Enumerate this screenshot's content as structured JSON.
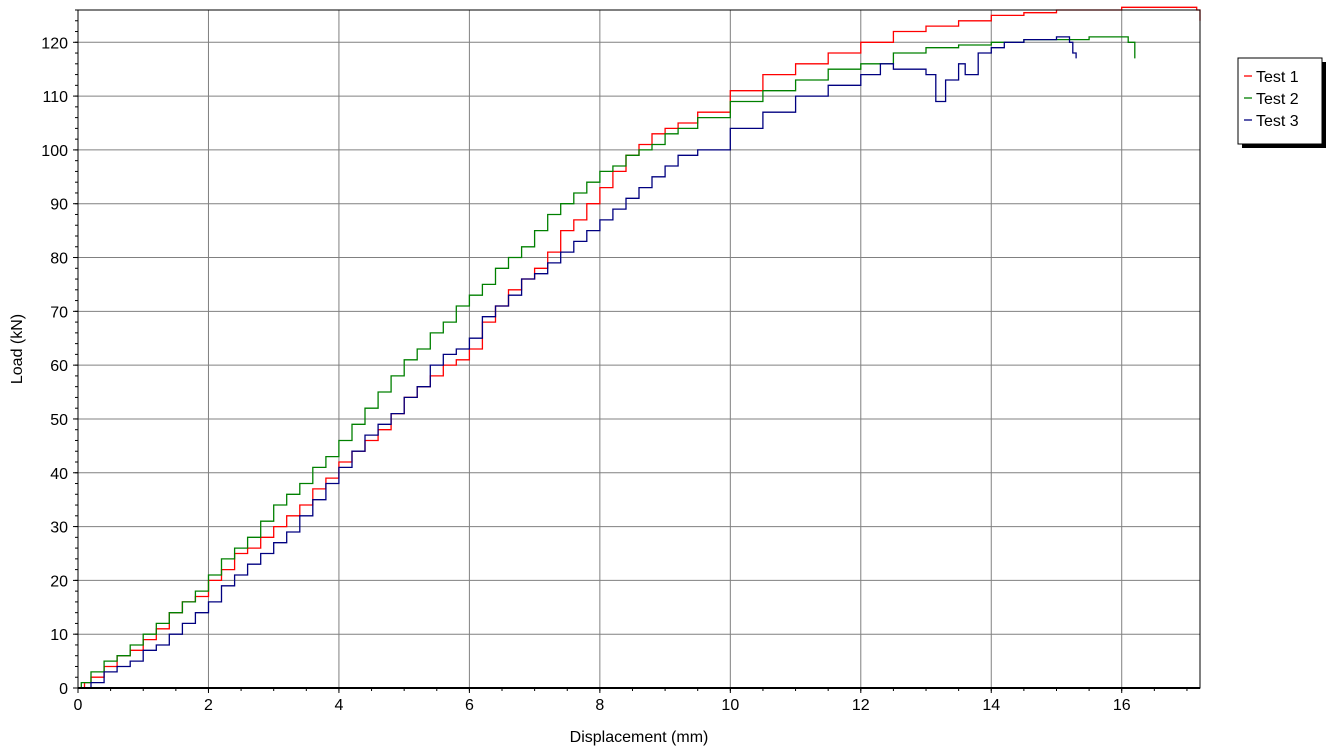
{
  "chart_data": {
    "type": "line",
    "title": "",
    "xlabel": "Displacement (mm)",
    "ylabel": "Load (kN)",
    "xlim": [
      0,
      17.2
    ],
    "ylim": [
      0,
      126
    ],
    "xticks": [
      0,
      2,
      4,
      6,
      8,
      10,
      12,
      14,
      16
    ],
    "yticks": [
      0,
      10,
      20,
      30,
      40,
      50,
      60,
      70,
      80,
      90,
      100,
      110,
      120
    ],
    "grid": true,
    "legend_position": "right",
    "series": [
      {
        "name": "Test 1",
        "color": "#ff0000",
        "points": [
          [
            0,
            0
          ],
          [
            0.1,
            1
          ],
          [
            0.2,
            2
          ],
          [
            0.4,
            4
          ],
          [
            0.6,
            6
          ],
          [
            0.8,
            7
          ],
          [
            1,
            9
          ],
          [
            1.2,
            11
          ],
          [
            1.4,
            14
          ],
          [
            1.6,
            16
          ],
          [
            1.8,
            17
          ],
          [
            2,
            20
          ],
          [
            2.2,
            22
          ],
          [
            2.4,
            25
          ],
          [
            2.6,
            26
          ],
          [
            2.8,
            28
          ],
          [
            3,
            30
          ],
          [
            3.2,
            32
          ],
          [
            3.4,
            34
          ],
          [
            3.6,
            37
          ],
          [
            3.8,
            39
          ],
          [
            4,
            42
          ],
          [
            4.2,
            44
          ],
          [
            4.4,
            46
          ],
          [
            4.6,
            48
          ],
          [
            4.8,
            51
          ],
          [
            5,
            54
          ],
          [
            5.2,
            56
          ],
          [
            5.4,
            58
          ],
          [
            5.6,
            60
          ],
          [
            5.8,
            61
          ],
          [
            6,
            63
          ],
          [
            6.2,
            68
          ],
          [
            6.4,
            71
          ],
          [
            6.6,
            74
          ],
          [
            6.8,
            76
          ],
          [
            7,
            78
          ],
          [
            7.2,
            81
          ],
          [
            7.4,
            85
          ],
          [
            7.6,
            87
          ],
          [
            7.8,
            90
          ],
          [
            8,
            93
          ],
          [
            8.2,
            96
          ],
          [
            8.4,
            99
          ],
          [
            8.6,
            101
          ],
          [
            8.8,
            103
          ],
          [
            9,
            104
          ],
          [
            9.2,
            105
          ],
          [
            9.5,
            107
          ],
          [
            10,
            111
          ],
          [
            10.5,
            114
          ],
          [
            11,
            116
          ],
          [
            11.5,
            118
          ],
          [
            12,
            120
          ],
          [
            12.5,
            122
          ],
          [
            13,
            123
          ],
          [
            13.5,
            124
          ],
          [
            14,
            125
          ],
          [
            14.5,
            125.5
          ],
          [
            15,
            126
          ],
          [
            16,
            126.5
          ],
          [
            17,
            126.5
          ],
          [
            17.15,
            126
          ],
          [
            17.2,
            124
          ]
        ]
      },
      {
        "name": "Test 2",
        "color": "#008000",
        "points": [
          [
            0,
            0
          ],
          [
            0.05,
            1
          ],
          [
            0.2,
            3
          ],
          [
            0.4,
            5
          ],
          [
            0.6,
            6
          ],
          [
            0.8,
            8
          ],
          [
            1,
            10
          ],
          [
            1.2,
            12
          ],
          [
            1.4,
            14
          ],
          [
            1.6,
            16
          ],
          [
            1.8,
            18
          ],
          [
            2,
            21
          ],
          [
            2.2,
            24
          ],
          [
            2.4,
            26
          ],
          [
            2.6,
            28
          ],
          [
            2.8,
            31
          ],
          [
            3,
            34
          ],
          [
            3.2,
            36
          ],
          [
            3.4,
            38
          ],
          [
            3.6,
            41
          ],
          [
            3.8,
            43
          ],
          [
            4,
            46
          ],
          [
            4.2,
            49
          ],
          [
            4.4,
            52
          ],
          [
            4.6,
            55
          ],
          [
            4.8,
            58
          ],
          [
            5,
            61
          ],
          [
            5.2,
            63
          ],
          [
            5.4,
            66
          ],
          [
            5.6,
            68
          ],
          [
            5.8,
            71
          ],
          [
            6,
            73
          ],
          [
            6.2,
            75
          ],
          [
            6.4,
            78
          ],
          [
            6.6,
            80
          ],
          [
            6.8,
            82
          ],
          [
            7,
            85
          ],
          [
            7.2,
            88
          ],
          [
            7.4,
            90
          ],
          [
            7.6,
            92
          ],
          [
            7.8,
            94
          ],
          [
            8,
            96
          ],
          [
            8.2,
            97
          ],
          [
            8.4,
            99
          ],
          [
            8.6,
            100
          ],
          [
            8.8,
            101
          ],
          [
            9,
            103
          ],
          [
            9.2,
            104
          ],
          [
            9.5,
            106
          ],
          [
            10,
            109
          ],
          [
            10.5,
            111
          ],
          [
            11,
            113
          ],
          [
            11.5,
            115
          ],
          [
            12,
            116
          ],
          [
            12.5,
            118
          ],
          [
            13,
            119
          ],
          [
            13.5,
            119.5
          ],
          [
            14,
            120
          ],
          [
            14.5,
            120.5
          ],
          [
            15,
            120.5
          ],
          [
            15.5,
            121
          ],
          [
            16,
            121
          ],
          [
            16.1,
            120
          ],
          [
            16.2,
            117
          ]
        ]
      },
      {
        "name": "Test 3",
        "color": "#000080",
        "points": [
          [
            0,
            0
          ],
          [
            0.1,
            0
          ],
          [
            0.2,
            1
          ],
          [
            0.4,
            3
          ],
          [
            0.6,
            4
          ],
          [
            0.8,
            5
          ],
          [
            1,
            7
          ],
          [
            1.2,
            8
          ],
          [
            1.4,
            10
          ],
          [
            1.6,
            12
          ],
          [
            1.8,
            14
          ],
          [
            2,
            16
          ],
          [
            2.2,
            19
          ],
          [
            2.4,
            21
          ],
          [
            2.6,
            23
          ],
          [
            2.8,
            25
          ],
          [
            3,
            27
          ],
          [
            3.2,
            29
          ],
          [
            3.4,
            32
          ],
          [
            3.6,
            35
          ],
          [
            3.8,
            38
          ],
          [
            4,
            41
          ],
          [
            4.2,
            44
          ],
          [
            4.4,
            47
          ],
          [
            4.6,
            49
          ],
          [
            4.8,
            51
          ],
          [
            5,
            54
          ],
          [
            5.2,
            56
          ],
          [
            5.4,
            60
          ],
          [
            5.6,
            62
          ],
          [
            5.8,
            63
          ],
          [
            6,
            65
          ],
          [
            6.2,
            69
          ],
          [
            6.4,
            71
          ],
          [
            6.6,
            73
          ],
          [
            6.8,
            76
          ],
          [
            7,
            77
          ],
          [
            7.2,
            79
          ],
          [
            7.4,
            81
          ],
          [
            7.6,
            83
          ],
          [
            7.8,
            85
          ],
          [
            8,
            87
          ],
          [
            8.2,
            89
          ],
          [
            8.4,
            91
          ],
          [
            8.6,
            93
          ],
          [
            8.8,
            95
          ],
          [
            9,
            97
          ],
          [
            9.2,
            99
          ],
          [
            9.5,
            100
          ],
          [
            10,
            104
          ],
          [
            10.5,
            107
          ],
          [
            11,
            110
          ],
          [
            11.5,
            112
          ],
          [
            12,
            114
          ],
          [
            12.3,
            116
          ],
          [
            12.5,
            115
          ],
          [
            13,
            114
          ],
          [
            13.15,
            109
          ],
          [
            13.3,
            113
          ],
          [
            13.5,
            116
          ],
          [
            13.6,
            114
          ],
          [
            13.8,
            118
          ],
          [
            14,
            119
          ],
          [
            14.2,
            120
          ],
          [
            14.5,
            120.5
          ],
          [
            15,
            121
          ],
          [
            15.15,
            121
          ],
          [
            15.2,
            120
          ],
          [
            15.25,
            118
          ],
          [
            15.3,
            117
          ]
        ]
      }
    ]
  }
}
